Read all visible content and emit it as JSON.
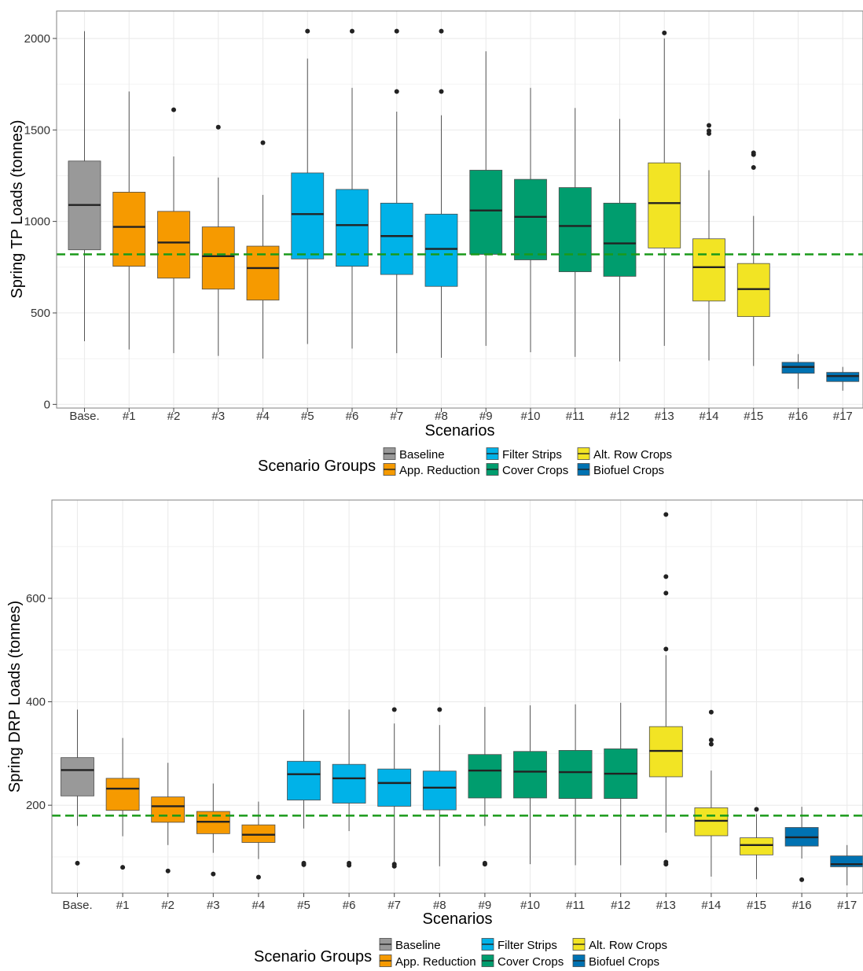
{
  "chart_data": [
    {
      "type": "boxplot",
      "xlabel": "Scenarios",
      "ylabel": "Spring TP Loads (tonnes)",
      "ylim": [
        -20,
        2150
      ],
      "yticks": [
        0,
        500,
        1000,
        1500,
        2000
      ],
      "ytick_labels": [
        "0",
        "500",
        "1000",
        "1500",
        "2000"
      ],
      "grid": true,
      "reference_line": 820,
      "categories": [
        "Base.",
        "#1",
        "#2",
        "#3",
        "#4",
        "#5",
        "#6",
        "#7",
        "#8",
        "#9",
        "#10",
        "#11",
        "#12",
        "#13",
        "#14",
        "#15",
        "#16",
        "#17"
      ],
      "groups": [
        "Baseline",
        "App. Reduction",
        "App. Reduction",
        "App. Reduction",
        "App. Reduction",
        "Filter Strips",
        "Filter Strips",
        "Filter Strips",
        "Filter Strips",
        "Cover Crops",
        "Cover Crops",
        "Cover Crops",
        "Cover Crops",
        "Alt. Row Crops",
        "Alt. Row Crops",
        "Alt. Row Crops",
        "Biofuel Crops",
        "Biofuel Crops"
      ],
      "boxes": [
        {
          "low": 345,
          "q1": 845,
          "median": 1090,
          "q3": 1330,
          "high": 2040,
          "outliers": []
        },
        {
          "low": 300,
          "q1": 755,
          "median": 970,
          "q3": 1160,
          "high": 1710,
          "outliers": []
        },
        {
          "low": 280,
          "q1": 690,
          "median": 885,
          "q3": 1055,
          "high": 1355,
          "outliers": [
            1610
          ]
        },
        {
          "low": 265,
          "q1": 630,
          "median": 810,
          "q3": 970,
          "high": 1240,
          "outliers": [
            1515
          ]
        },
        {
          "low": 250,
          "q1": 570,
          "median": 745,
          "q3": 865,
          "high": 1145,
          "outliers": [
            1430
          ]
        },
        {
          "low": 330,
          "q1": 795,
          "median": 1040,
          "q3": 1265,
          "high": 1890,
          "outliers": [
            2040
          ]
        },
        {
          "low": 305,
          "q1": 755,
          "median": 980,
          "q3": 1175,
          "high": 1730,
          "outliers": [
            2040
          ]
        },
        {
          "low": 280,
          "q1": 710,
          "median": 920,
          "q3": 1100,
          "high": 1600,
          "outliers": [
            1710,
            2040
          ]
        },
        {
          "low": 255,
          "q1": 645,
          "median": 850,
          "q3": 1040,
          "high": 1580,
          "outliers": [
            1710,
            2040
          ]
        },
        {
          "low": 320,
          "q1": 820,
          "median": 1060,
          "q3": 1280,
          "high": 1930,
          "outliers": []
        },
        {
          "low": 285,
          "q1": 790,
          "median": 1025,
          "q3": 1230,
          "high": 1730,
          "outliers": []
        },
        {
          "low": 260,
          "q1": 725,
          "median": 975,
          "q3": 1185,
          "high": 1620,
          "outliers": []
        },
        {
          "low": 235,
          "q1": 700,
          "median": 880,
          "q3": 1100,
          "high": 1560,
          "outliers": []
        },
        {
          "low": 320,
          "q1": 855,
          "median": 1100,
          "q3": 1320,
          "high": 2000,
          "outliers": [
            2030
          ]
        },
        {
          "low": 240,
          "q1": 565,
          "median": 750,
          "q3": 905,
          "high": 1280,
          "outliers": [
            1480,
            1495,
            1525
          ]
        },
        {
          "low": 210,
          "q1": 480,
          "median": 630,
          "q3": 770,
          "high": 1030,
          "outliers": [
            1295,
            1365,
            1375
          ]
        },
        {
          "low": 85,
          "q1": 170,
          "median": 205,
          "q3": 230,
          "high": 275,
          "outliers": []
        },
        {
          "low": 75,
          "q1": 125,
          "median": 155,
          "q3": 175,
          "high": 205,
          "outliers": []
        }
      ]
    },
    {
      "type": "boxplot",
      "xlabel": "Scenarios",
      "ylabel": "Spring DRP Loads (tonnes)",
      "ylim": [
        30,
        790
      ],
      "yticks": [
        200,
        400,
        600
      ],
      "ytick_labels": [
        "200",
        "400",
        "600"
      ],
      "grid": true,
      "reference_line": 180,
      "categories": [
        "Base.",
        "#1",
        "#2",
        "#3",
        "#4",
        "#5",
        "#6",
        "#7",
        "#8",
        "#9",
        "#10",
        "#11",
        "#12",
        "#13",
        "#14",
        "#15",
        "#16",
        "#17"
      ],
      "groups": [
        "Baseline",
        "App. Reduction",
        "App. Reduction",
        "App. Reduction",
        "App. Reduction",
        "Filter Strips",
        "Filter Strips",
        "Filter Strips",
        "Filter Strips",
        "Cover Crops",
        "Cover Crops",
        "Cover Crops",
        "Cover Crops",
        "Alt. Row Crops",
        "Alt. Row Crops",
        "Alt. Row Crops",
        "Biofuel Crops",
        "Biofuel Crops"
      ],
      "boxes": [
        {
          "low": 160,
          "q1": 218,
          "median": 268,
          "q3": 292,
          "high": 385,
          "outliers": [
            88
          ]
        },
        {
          "low": 140,
          "q1": 190,
          "median": 232,
          "q3": 252,
          "high": 330,
          "outliers": [
            80
          ]
        },
        {
          "low": 123,
          "q1": 167,
          "median": 198,
          "q3": 216,
          "high": 282,
          "outliers": [
            73
          ]
        },
        {
          "low": 108,
          "q1": 145,
          "median": 168,
          "q3": 188,
          "high": 242,
          "outliers": [
            67
          ]
        },
        {
          "low": 96,
          "q1": 128,
          "median": 143,
          "q3": 162,
          "high": 207,
          "outliers": [
            61
          ]
        },
        {
          "low": 155,
          "q1": 210,
          "median": 260,
          "q3": 285,
          "high": 385,
          "outliers": [
            85,
            88
          ]
        },
        {
          "low": 150,
          "q1": 204,
          "median": 252,
          "q3": 279,
          "high": 385,
          "outliers": [
            84,
            88
          ]
        },
        {
          "low": 85,
          "q1": 198,
          "median": 243,
          "q3": 270,
          "high": 358,
          "outliers": [
            82,
            86,
            385
          ]
        },
        {
          "low": 82,
          "q1": 191,
          "median": 234,
          "q3": 266,
          "high": 355,
          "outliers": [
            385
          ]
        },
        {
          "low": 160,
          "q1": 214,
          "median": 267,
          "q3": 298,
          "high": 390,
          "outliers": [
            86,
            88
          ]
        },
        {
          "low": 86,
          "q1": 214,
          "median": 265,
          "q3": 304,
          "high": 393,
          "outliers": []
        },
        {
          "low": 84,
          "q1": 213,
          "median": 264,
          "q3": 306,
          "high": 395,
          "outliers": []
        },
        {
          "low": 84,
          "q1": 213,
          "median": 261,
          "q3": 309,
          "high": 398,
          "outliers": []
        },
        {
          "low": 147,
          "q1": 255,
          "median": 305,
          "q3": 352,
          "high": 490,
          "outliers": [
            86,
            90,
            502,
            610,
            642,
            762
          ]
        },
        {
          "low": 62,
          "q1": 141,
          "median": 170,
          "q3": 195,
          "high": 267,
          "outliers": [
            318,
            326,
            380
          ]
        },
        {
          "low": 57,
          "q1": 104,
          "median": 123,
          "q3": 137,
          "high": 183,
          "outliers": [
            192
          ]
        },
        {
          "low": 97,
          "q1": 121,
          "median": 138,
          "q3": 157,
          "high": 197,
          "outliers": [
            56
          ]
        },
        {
          "low": 45,
          "q1": 81,
          "median": 86,
          "q3": 102,
          "high": 123,
          "outliers": []
        }
      ]
    }
  ],
  "legend": {
    "title": "Scenario Groups",
    "items": [
      {
        "label": "Baseline",
        "color": "#999999"
      },
      {
        "label": "App. Reduction",
        "color": "#F69A00"
      },
      {
        "label": "Filter Strips",
        "color": "#00B2E8"
      },
      {
        "label": "Cover Crops",
        "color": "#009D6E"
      },
      {
        "label": "Alt. Row Crops",
        "color": "#F2E424"
      },
      {
        "label": "Biofuel Crops",
        "color": "#0072B2"
      }
    ]
  },
  "colors": {
    "reference_line": "#1A9A1A",
    "median": "#222222",
    "whisker": "#555555",
    "grid": "#EBEBEB",
    "outlier": "#222222"
  }
}
